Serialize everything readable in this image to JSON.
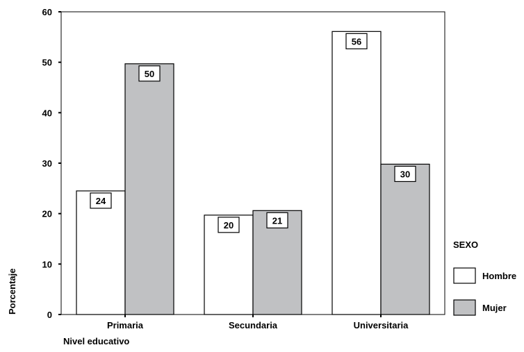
{
  "chart_data": {
    "type": "bar",
    "title": "",
    "xlabel": "Nivel educativo",
    "ylabel": "Porcentaje",
    "categories": [
      "Primaria",
      "Secundaria",
      "Universitaria"
    ],
    "series": [
      {
        "name": "Hombre",
        "values": [
          24.5,
          19.7,
          56.1
        ],
        "labels": [
          "24",
          "20",
          "56"
        ],
        "color": "#ffffff"
      },
      {
        "name": "Mujer",
        "values": [
          49.7,
          20.6,
          29.8
        ],
        "labels": [
          "50",
          "21",
          "30"
        ],
        "color": "#c0c1c3"
      }
    ],
    "ylim": [
      0,
      60
    ],
    "yticks": [
      0,
      10,
      20,
      30,
      40,
      50,
      60
    ],
    "grid": false,
    "legend": {
      "title": "SEXO",
      "position": "right"
    }
  }
}
